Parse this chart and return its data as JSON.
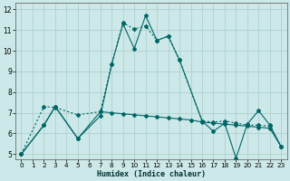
{
  "title": "",
  "xlabel": "Humidex (Indice chaleur)",
  "bg_color": "#cce8e8",
  "grid_color": "#b0d0d0",
  "line_color": "#006666",
  "xlim": [
    -0.5,
    23.5
  ],
  "ylim": [
    4.75,
    12.3
  ],
  "xticks": [
    0,
    1,
    2,
    3,
    4,
    5,
    6,
    7,
    8,
    9,
    10,
    11,
    12,
    13,
    14,
    15,
    16,
    17,
    18,
    19,
    20,
    21,
    22,
    23
  ],
  "yticks": [
    5,
    6,
    7,
    8,
    9,
    10,
    11,
    12
  ],
  "series1_x": [
    0,
    2,
    3,
    5,
    7,
    8,
    9,
    10,
    11,
    12,
    13,
    14,
    16,
    17,
    18,
    19,
    20,
    21,
    22,
    23
  ],
  "series1_y": [
    5.0,
    6.4,
    7.3,
    5.75,
    6.85,
    9.35,
    11.3,
    10.1,
    11.7,
    10.5,
    10.7,
    9.55,
    6.6,
    6.1,
    6.5,
    4.8,
    6.45,
    7.1,
    6.4,
    5.35
  ],
  "series2_x": [
    0,
    2,
    3,
    5,
    7,
    8,
    9,
    10,
    11,
    12,
    13,
    14,
    16,
    17,
    18,
    19,
    20,
    21,
    22,
    23
  ],
  "series2_y": [
    5.0,
    7.3,
    7.25,
    6.9,
    7.05,
    9.35,
    11.35,
    11.05,
    11.2,
    10.5,
    10.7,
    9.55,
    6.6,
    6.55,
    6.6,
    6.5,
    6.4,
    6.4,
    6.35,
    5.35
  ],
  "series3_x": [
    0,
    2,
    3,
    5,
    7,
    8,
    9,
    10,
    11,
    12,
    13,
    14,
    15,
    16,
    17,
    18,
    19,
    20,
    21,
    22,
    23
  ],
  "series3_y": [
    5.0,
    6.4,
    7.3,
    5.75,
    7.05,
    7.0,
    6.95,
    6.9,
    6.85,
    6.8,
    6.75,
    6.7,
    6.65,
    6.55,
    6.5,
    6.45,
    6.4,
    6.35,
    6.3,
    6.25,
    5.35
  ]
}
